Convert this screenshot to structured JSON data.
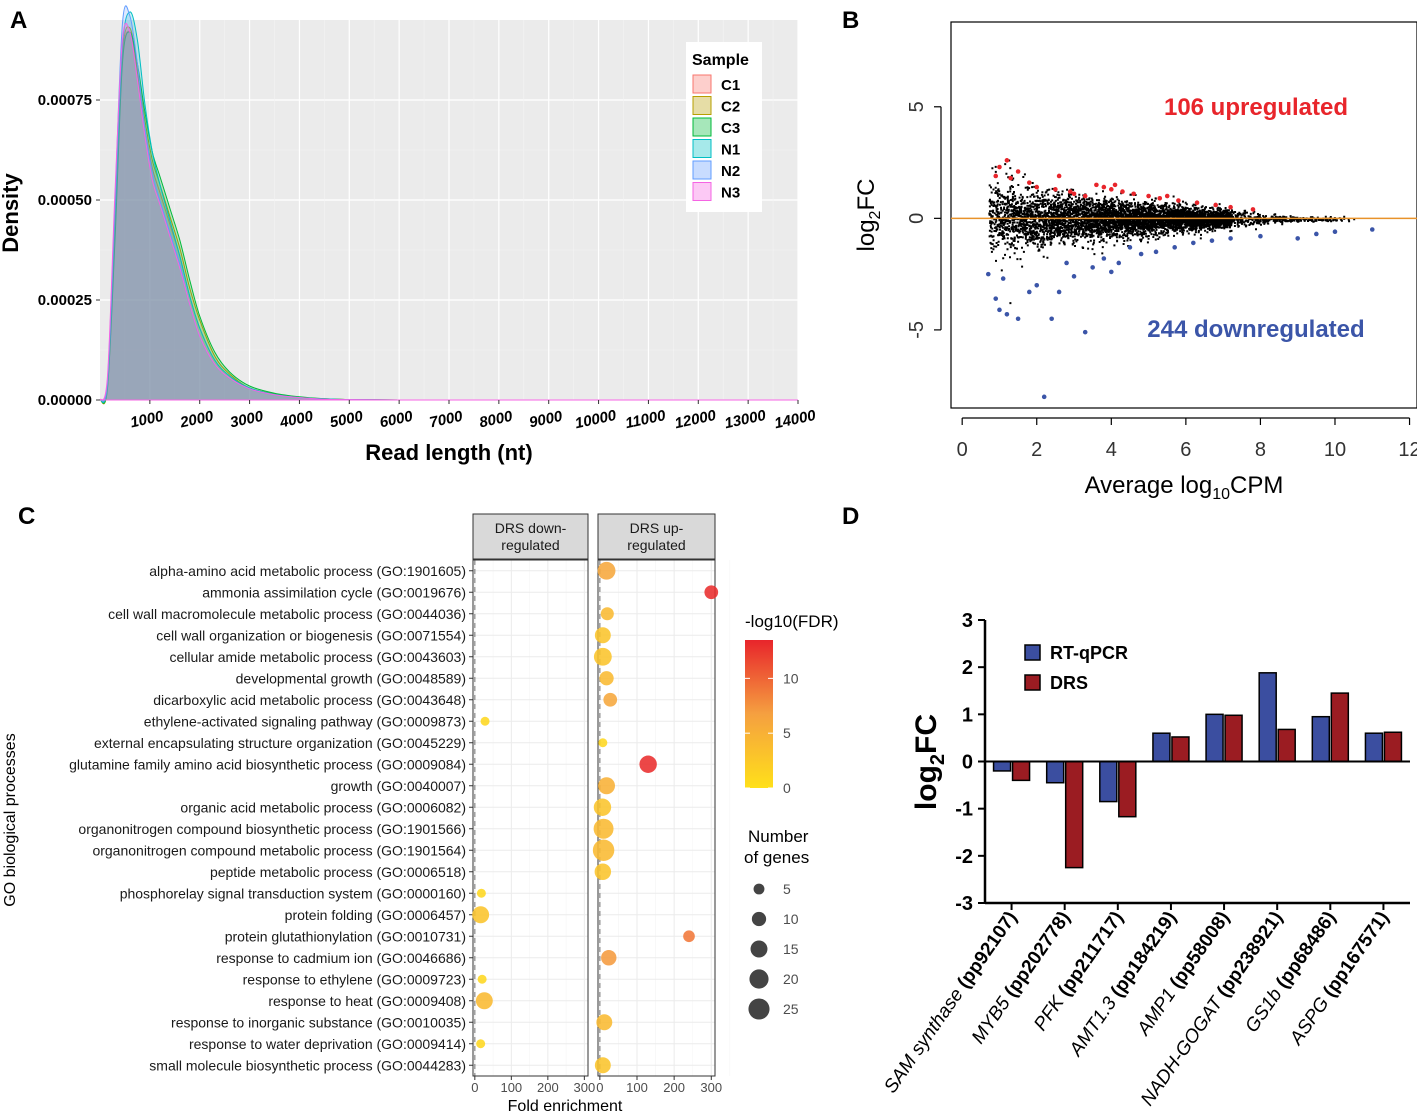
{
  "panel_letters": {
    "a": "A",
    "b": "B",
    "c": "C",
    "d": "D"
  },
  "colors": {
    "c1": "#f8766d",
    "c2": "#b79f00",
    "c3": "#00ba38",
    "n1": "#00bfc4",
    "n2": "#619cff",
    "n3": "#f564e3",
    "up": "#e8252b",
    "down": "#3b55a8",
    "hline": "#e8922a",
    "rtqpcr": "#3b4ea0",
    "drs": "#9b1c22",
    "fdr_low": "#ffe01a",
    "fdr_mid": "#f5a040",
    "fdr_high": "#e8252b"
  },
  "chart_data": [
    {
      "id": "A",
      "type": "area",
      "title": "",
      "xlabel": "Read length (nt)",
      "ylabel": "Density",
      "xlim": [
        0,
        14000
      ],
      "ylim": [
        0,
        0.00095
      ],
      "x_ticks": [
        "1000",
        "2000",
        "3000",
        "4000",
        "5000",
        "6000",
        "7000",
        "8000",
        "9000",
        "10000",
        "11000",
        "12000",
        "13000",
        "14000"
      ],
      "y_ticks": [
        "0.00000",
        "0.00025",
        "0.00050",
        "0.00075"
      ],
      "legend": {
        "title": "Sample",
        "position": "top-right",
        "entries": [
          "C1",
          "C2",
          "C3",
          "N1",
          "N2",
          "N3"
        ]
      },
      "x": [
        0,
        150,
        300,
        450,
        600,
        750,
        900,
        1050,
        1200,
        1400,
        1600,
        1800,
        2000,
        2300,
        2600,
        3000,
        3500,
        4000,
        4500,
        5000,
        6000,
        8000,
        10000,
        12000,
        14000
      ],
      "series": [
        {
          "name": "C1",
          "values": [
            0,
            4e-05,
            0.00045,
            0.00085,
            0.00092,
            0.00082,
            0.00068,
            0.00058,
            0.00052,
            0.00044,
            0.00036,
            0.00026,
            0.00018,
            0.0001,
            6e-05,
            3e-05,
            1.5e-05,
            7e-06,
            3e-06,
            1e-06,
            0,
            0,
            0,
            0,
            0
          ]
        },
        {
          "name": "C2",
          "values": [
            0,
            3e-05,
            0.00042,
            0.00086,
            0.00093,
            0.00083,
            0.0007,
            0.0006,
            0.00054,
            0.00046,
            0.00038,
            0.00028,
            0.0002,
            0.00011,
            6.5e-05,
            3e-05,
            1.5e-05,
            7e-06,
            3e-06,
            1e-06,
            0,
            0,
            0,
            0,
            0
          ]
        },
        {
          "name": "C3",
          "values": [
            0,
            3e-05,
            0.0004,
            0.00084,
            0.00092,
            0.00084,
            0.00072,
            0.00062,
            0.00056,
            0.00048,
            0.0004,
            0.0003,
            0.00021,
            0.00012,
            7e-05,
            3.5e-05,
            1.7e-05,
            8e-06,
            3e-06,
            1e-06,
            0,
            0,
            0,
            0,
            0
          ]
        },
        {
          "name": "N1",
          "values": [
            0,
            4e-05,
            0.00046,
            0.00088,
            0.00097,
            0.0009,
            0.00074,
            0.00062,
            0.00054,
            0.00045,
            0.00036,
            0.00026,
            0.00018,
            0.0001,
            6e-05,
            3e-05,
            1.4e-05,
            6e-06,
            3e-06,
            1e-06,
            0,
            0,
            0,
            0,
            0
          ]
        },
        {
          "name": "N2",
          "values": [
            0,
            5e-05,
            0.0005,
            0.00094,
            0.00096,
            0.00084,
            0.00068,
            0.00057,
            0.0005,
            0.00042,
            0.00034,
            0.00024,
            0.00016,
            9e-05,
            5.5e-05,
            2.8e-05,
            1.3e-05,
            6e-06,
            2e-06,
            1e-06,
            0,
            0,
            0,
            0,
            0
          ]
        },
        {
          "name": "N3",
          "values": [
            0,
            6e-05,
            0.00052,
            0.0009,
            0.00092,
            0.0008,
            0.00066,
            0.00055,
            0.00049,
            0.00041,
            0.00033,
            0.00024,
            0.00016,
            9e-05,
            5.5e-05,
            2.8e-05,
            1.3e-05,
            6e-06,
            2e-06,
            1e-06,
            0,
            0,
            0,
            0,
            0
          ]
        }
      ]
    },
    {
      "id": "B",
      "type": "scatter",
      "title": "",
      "xlabel_main": "Average log",
      "xlabel_sub": "10",
      "xlabel_tail": "CPM",
      "ylabel_main": "log",
      "ylabel_sub": "2",
      "ylabel_tail": "FC",
      "xlim": [
        -0.3,
        12.2
      ],
      "ylim": [
        -8.5,
        8.8
      ],
      "x_ticks": [
        "0",
        "2",
        "4",
        "6",
        "8",
        "10",
        "12"
      ],
      "y_ticks": [
        "-5",
        "0",
        "5"
      ],
      "annotations": {
        "up": "106 upregulated",
        "down": "244 downregulated"
      },
      "upregulated_count": 106,
      "downregulated_count": 244,
      "up_points": [
        [
          1.0,
          2.3
        ],
        [
          1.2,
          2.6
        ],
        [
          1.5,
          2.1
        ],
        [
          1.8,
          1.6
        ],
        [
          1.3,
          1.8
        ],
        [
          2.0,
          1.4
        ],
        [
          2.5,
          1.3
        ],
        [
          2.9,
          1.2
        ],
        [
          3.3,
          1.0
        ],
        [
          3.6,
          1.5
        ],
        [
          3.8,
          1.4
        ],
        [
          4.0,
          1.3
        ],
        [
          4.3,
          1.2
        ],
        [
          4.6,
          1.1
        ],
        [
          5.0,
          1.0
        ],
        [
          5.3,
          0.9
        ],
        [
          5.8,
          0.8
        ],
        [
          6.3,
          0.7
        ],
        [
          6.8,
          0.6
        ],
        [
          7.2,
          0.5
        ],
        [
          7.8,
          0.4
        ],
        [
          3.0,
          1.1
        ],
        [
          2.6,
          1.9
        ],
        [
          4.1,
          1.5
        ],
        [
          5.5,
          1.0
        ],
        [
          0.9,
          1.9
        ]
      ],
      "down_points": [
        [
          0.7,
          -2.5
        ],
        [
          0.9,
          -3.6
        ],
        [
          1.0,
          -4.1
        ],
        [
          1.2,
          -4.3
        ],
        [
          1.5,
          -4.5
        ],
        [
          2.2,
          -8.0
        ],
        [
          2.4,
          -4.5
        ],
        [
          3.3,
          -5.1
        ],
        [
          1.8,
          -3.3
        ],
        [
          2.0,
          -3.0
        ],
        [
          2.6,
          -3.3
        ],
        [
          3.0,
          -2.6
        ],
        [
          3.5,
          -2.2
        ],
        [
          4.0,
          -2.4
        ],
        [
          4.2,
          -2.0
        ],
        [
          4.8,
          -1.6
        ],
        [
          5.2,
          -1.5
        ],
        [
          5.7,
          -1.3
        ],
        [
          6.2,
          -1.1
        ],
        [
          6.7,
          -1.0
        ],
        [
          7.2,
          -0.9
        ],
        [
          8.0,
          -0.8
        ],
        [
          9.0,
          -0.9
        ],
        [
          9.5,
          -0.7
        ],
        [
          10.0,
          -0.6
        ],
        [
          11.0,
          -0.5
        ],
        [
          2.8,
          -2.0
        ],
        [
          3.8,
          -1.8
        ],
        [
          1.1,
          -2.7
        ],
        [
          4.5,
          -1.3
        ]
      ],
      "hline_y": 0
    },
    {
      "id": "C",
      "type": "scatter",
      "title": "",
      "xlabel": "Fold enrichment",
      "ylabel": "GO biological processes",
      "facets": [
        "DRS down-\nregulated",
        "DRS up-\nregulated"
      ],
      "xlim": [
        -5,
        310
      ],
      "x_ticks": [
        "0",
        "100",
        "200",
        "300"
      ],
      "color_legend": {
        "title": "-log10(FDR)",
        "ticks": [
          "0",
          "5",
          "10"
        ],
        "range": [
          0,
          13.5
        ]
      },
      "size_legend": {
        "title_line1": "Number",
        "title_line2": "of genes",
        "ticks": [
          "5",
          "10",
          "15",
          "20",
          "25"
        ]
      },
      "categories": [
        "alpha-amino acid metabolic process (GO:1901605)",
        "ammonia assimilation cycle (GO:0019676)",
        "cell wall macromolecule metabolic process (GO:0044036)",
        "cell wall organization or biogenesis (GO:0071554)",
        "cellular amide metabolic process (GO:0043603)",
        "developmental growth (GO:0048589)",
        "dicarboxylic acid metabolic process (GO:0043648)",
        "ethylene-activated signaling pathway (GO:0009873)",
        "external encapsulating structure organization (GO:0045229)",
        "glutamine family amino acid biosynthetic process (GO:0009084)",
        "growth (GO:0040007)",
        "organic acid metabolic process (GO:0006082)",
        "organonitrogen compound biosynthetic process (GO:1901566)",
        "organonitrogen compound metabolic process (GO:1901564)",
        "peptide metabolic process (GO:0006518)",
        "phosphorelay signal transduction system (GO:0000160)",
        "protein folding (GO:0006457)",
        "protein glutathionylation (GO:0010731)",
        "response to cadmium ion (GO:0046686)",
        "response to ethylene (GO:0009723)",
        "response to heat (GO:0009408)",
        "response to inorganic substance (GO:0010035)",
        "response to water deprivation (GO:0009414)",
        "small molecule biosynthetic process (GO:0044283)"
      ],
      "points": [
        {
          "facet": 1,
          "cat": 0,
          "fold": 18,
          "genes": 17,
          "fdr": 6
        },
        {
          "facet": 1,
          "cat": 1,
          "fold": 300,
          "genes": 9,
          "fdr": 13
        },
        {
          "facet": 1,
          "cat": 2,
          "fold": 20,
          "genes": 8,
          "fdr": 4
        },
        {
          "facet": 1,
          "cat": 3,
          "fold": 8,
          "genes": 13,
          "fdr": 3
        },
        {
          "facet": 1,
          "cat": 4,
          "fold": 8,
          "genes": 17,
          "fdr": 3
        },
        {
          "facet": 1,
          "cat": 5,
          "fold": 18,
          "genes": 10,
          "fdr": 4
        },
        {
          "facet": 1,
          "cat": 6,
          "fold": 28,
          "genes": 9,
          "fdr": 6
        },
        {
          "facet": 0,
          "cat": 7,
          "fold": 28,
          "genes": 3,
          "fdr": 1
        },
        {
          "facet": 1,
          "cat": 8,
          "fold": 8,
          "genes": 3,
          "fdr": 1
        },
        {
          "facet": 1,
          "cat": 9,
          "fold": 130,
          "genes": 16,
          "fdr": 13
        },
        {
          "facet": 1,
          "cat": 10,
          "fold": 18,
          "genes": 15,
          "fdr": 5
        },
        {
          "facet": 1,
          "cat": 11,
          "fold": 7,
          "genes": 16,
          "fdr": 3
        },
        {
          "facet": 1,
          "cat": 12,
          "fold": 10,
          "genes": 22,
          "fdr": 4
        },
        {
          "facet": 1,
          "cat": 13,
          "fold": 10,
          "genes": 26,
          "fdr": 4
        },
        {
          "facet": 1,
          "cat": 14,
          "fold": 8,
          "genes": 14,
          "fdr": 3
        },
        {
          "facet": 0,
          "cat": 15,
          "fold": 18,
          "genes": 3,
          "fdr": 1
        },
        {
          "facet": 0,
          "cat": 16,
          "fold": 16,
          "genes": 15,
          "fdr": 3
        },
        {
          "facet": 1,
          "cat": 17,
          "fold": 240,
          "genes": 6,
          "fdr": 9
        },
        {
          "facet": 1,
          "cat": 18,
          "fold": 24,
          "genes": 12,
          "fdr": 7
        },
        {
          "facet": 0,
          "cat": 19,
          "fold": 20,
          "genes": 3,
          "fdr": 1
        },
        {
          "facet": 0,
          "cat": 20,
          "fold": 26,
          "genes": 15,
          "fdr": 4
        },
        {
          "facet": 1,
          "cat": 21,
          "fold": 12,
          "genes": 13,
          "fdr": 4
        },
        {
          "facet": 0,
          "cat": 22,
          "fold": 16,
          "genes": 3,
          "fdr": 1
        },
        {
          "facet": 1,
          "cat": 23,
          "fold": 8,
          "genes": 13,
          "fdr": 3
        }
      ]
    },
    {
      "id": "D",
      "type": "bar",
      "title": "",
      "ylabel_main": "log",
      "ylabel_sub": "2",
      "ylabel_tail": "FC",
      "ylim": [
        -3,
        3
      ],
      "y_ticks": [
        "-3",
        "-2",
        "-1",
        "0",
        "1",
        "2",
        "3"
      ],
      "legend": {
        "position": "top-left",
        "entries": [
          "RT-qPCR",
          "DRS"
        ]
      },
      "categories": [
        {
          "italic": "SAM synthase",
          "bold": " (pp92107)"
        },
        {
          "italic": "MYB5",
          "bold": " (pp202778)"
        },
        {
          "italic": "PFK",
          "bold": " (pp211717)"
        },
        {
          "italic": "AMT1.3",
          "bold": " (pp184219)"
        },
        {
          "italic": "AMP1",
          "bold": " (pp58008)"
        },
        {
          "italic": "NADH-GOGAT",
          "bold": " (pp238921)"
        },
        {
          "italic": "GS1b",
          "bold": " (pp68486)"
        },
        {
          "italic": "ASPG",
          "bold": " (pp167571)"
        }
      ],
      "series": [
        {
          "name": "RT-qPCR",
          "values": [
            -0.2,
            -0.45,
            -0.85,
            0.6,
            1.0,
            1.88,
            0.95,
            0.6
          ]
        },
        {
          "name": "DRS",
          "values": [
            -0.4,
            -2.25,
            -1.17,
            0.52,
            0.98,
            0.68,
            1.45,
            0.62
          ]
        }
      ]
    }
  ]
}
